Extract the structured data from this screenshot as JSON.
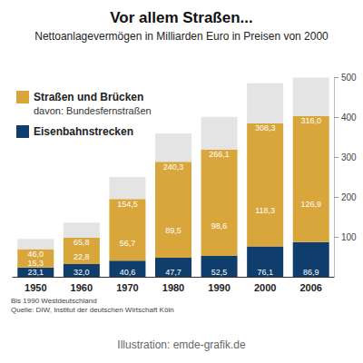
{
  "chart_data": {
    "type": "bar",
    "title": "Vor allem Straßen...",
    "subtitle": "Nettoanlagevermögen in Milliarden Euro in Preisen von 2000",
    "categories": [
      "1950",
      "1960",
      "1970",
      "1980",
      "1990",
      "2000",
      "2006"
    ],
    "stacked": true,
    "legend": "top-left",
    "grid": false,
    "ylim": [
      0,
      500
    ],
    "yticks": [
      100,
      200,
      300,
      400,
      500
    ],
    "series": [
      {
        "name": "Eisenbahnstrecken",
        "color": "#0f3e6c",
        "values": [
          23.1,
          32.0,
          40.6,
          47.7,
          52.5,
          76.1,
          86.9
        ],
        "value_labels": [
          "23,1",
          "32,0",
          "40,6",
          "47,7",
          "52,5",
          "76,1",
          "86,9"
        ],
        "data_labels": true
      },
      {
        "name": "Straßen und Brücken",
        "color": "#d9a63c",
        "values": [
          46.0,
          65.8,
          154.5,
          240.3,
          266.1,
          308.3,
          316.0
        ],
        "value_labels": [
          "46,0",
          "65,8",
          "154,5",
          "240,3",
          "266,1",
          "308,3",
          "316,0"
        ],
        "data_labels": true,
        "subset_name": "davon: Bundesfernstraßen",
        "subset_values": [
          15.3,
          22.8,
          56.7,
          89.5,
          98.6,
          118.3,
          126.9
        ],
        "subset_value_labels": [
          "15,3",
          "22,8",
          "56,7",
          "89,5",
          "98,6",
          "118,3",
          "126,9"
        ]
      },
      {
        "color": "#e4e4e4",
        "values": [
          26,
          38,
          55,
          71,
          82,
          100,
          96
        ]
      }
    ],
    "notes": [
      "Bis 1990 Westdeutschland",
      "Quelle: DIW, Institut der deutschen Wirtschaft Köln"
    ],
    "credit": "Illustration: emde-grafik.de"
  }
}
